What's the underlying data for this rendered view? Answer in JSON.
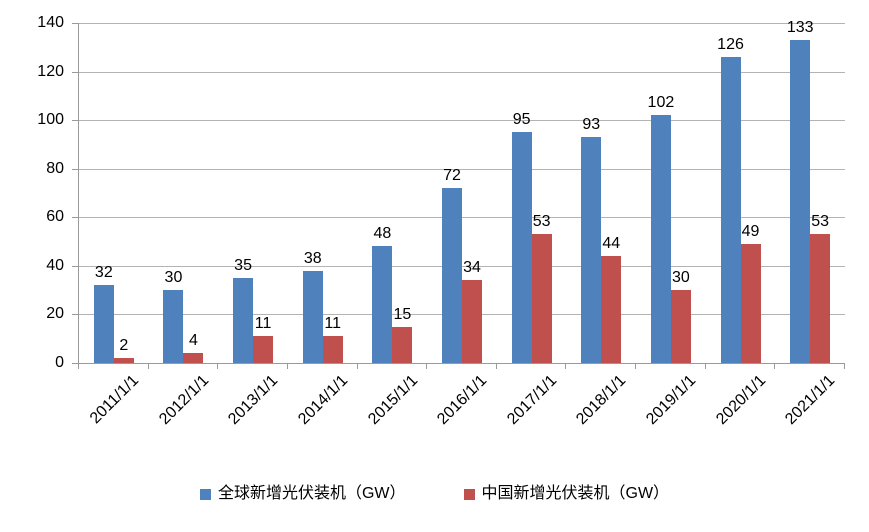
{
  "chart_data": {
    "type": "bar",
    "title": "",
    "xlabel": "",
    "ylabel": "",
    "categories": [
      "2011/1/1",
      "2012/1/1",
      "2013/1/1",
      "2014/1/1",
      "2015/1/1",
      "2016/1/1",
      "2017/1/1",
      "2018/1/1",
      "2019/1/1",
      "2020/1/1",
      "2021/1/1"
    ],
    "series": [
      {
        "name": "全球新增光伏装机（GW）",
        "color": "#4F81BD",
        "values": [
          32,
          30,
          35,
          38,
          48,
          72,
          95,
          93,
          102,
          126,
          133
        ]
      },
      {
        "name": "中国新增光伏装机（GW）",
        "color": "#C0504D",
        "values": [
          2,
          4,
          11,
          11,
          15,
          34,
          53,
          44,
          30,
          49,
          53
        ]
      }
    ],
    "ylim": [
      0,
      140
    ],
    "yticks": [
      0,
      20,
      40,
      60,
      80,
      100,
      120,
      140
    ],
    "grid": true,
    "data_labels": true,
    "legend_position": "bottom",
    "colors": {
      "series_global": "#4F81BD",
      "series_china": "#C0504D",
      "gridline": "#B3B3B3",
      "axis_line": "#9A9A9A",
      "text": "#000000",
      "background": "#FFFFFF"
    }
  }
}
